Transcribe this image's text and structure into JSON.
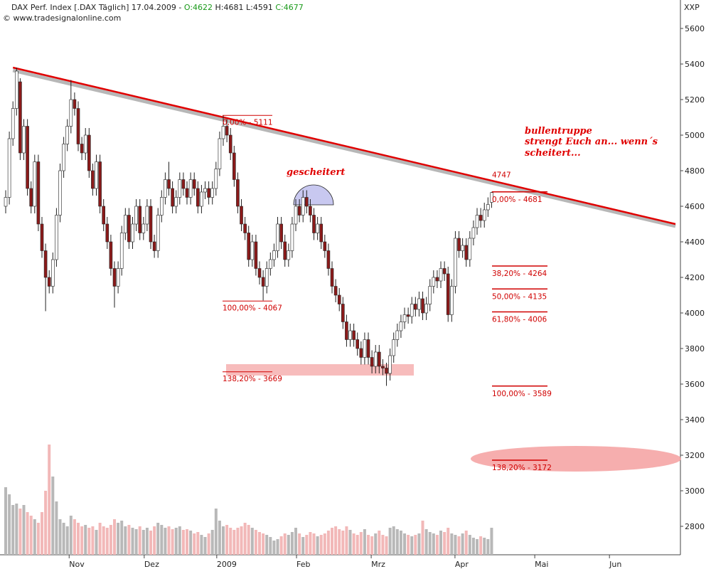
{
  "header": {
    "title": "DAX Perf. Index [.DAX Täglich] 17.04.2009 -",
    "open": "O:4622",
    "high": "H:4681",
    "low": "L:4591",
    "close": "C:4677",
    "copyright": "© www.tradesignalonline.com",
    "axis_code": "XXP"
  },
  "chart_data": {
    "type": "candlestick",
    "up_color": "#ffffff",
    "down_color": "#8b1a1a",
    "volume_up_color": "#b8b8b8",
    "volume_down_color": "#f2b8b8",
    "trend_color": "#e00000",
    "xlim": [
      -1.57,
      184.7
    ],
    "ylim": [
      2640,
      5760
    ],
    "yticks": [
      2800,
      3000,
      3200,
      3400,
      3600,
      3800,
      4000,
      4200,
      4400,
      4600,
      4800,
      5000,
      5200,
      5400,
      5600
    ],
    "xticks": [
      {
        "value": 17.5,
        "label": "Nov"
      },
      {
        "value": 38.2,
        "label": "Dez"
      },
      {
        "value": 58.2,
        "label": "2009"
      },
      {
        "value": 80.2,
        "label": "Feb"
      },
      {
        "value": 100.8,
        "label": "Mrz"
      },
      {
        "value": 123.9,
        "label": "Apr"
      },
      {
        "value": 145.9,
        "label": "Mai"
      },
      {
        "value": 166.5,
        "label": "Jun"
      }
    ],
    "candles": [
      [
        4600,
        4690,
        4560,
        4650
      ],
      [
        4650,
        5020,
        4610,
        4980
      ],
      [
        4980,
        5190,
        4940,
        5150
      ],
      [
        5150,
        5380,
        5110,
        5360
      ],
      [
        5300,
        5320,
        4860,
        4900
      ],
      [
        4900,
        5090,
        4860,
        5050
      ],
      [
        5050,
        5090,
        4660,
        4700
      ],
      [
        4700,
        4740,
        4560,
        4600
      ],
      [
        4600,
        4890,
        4560,
        4850
      ],
      [
        4850,
        4890,
        4460,
        4500
      ],
      [
        4500,
        4540,
        4310,
        4350
      ],
      [
        4350,
        4390,
        4010,
        4200
      ],
      [
        4200,
        4240,
        4110,
        4150
      ],
      [
        4150,
        4340,
        4110,
        4300
      ],
      [
        4300,
        4590,
        4260,
        4550
      ],
      [
        4550,
        4840,
        4510,
        4800
      ],
      [
        4800,
        4990,
        4760,
        4950
      ],
      [
        4950,
        5090,
        4910,
        5050
      ],
      [
        5050,
        5310,
        5010,
        5200
      ],
      [
        5200,
        5240,
        5110,
        5150
      ],
      [
        5150,
        5190,
        4910,
        4950
      ],
      [
        4950,
        4990,
        4860,
        4900
      ],
      [
        4900,
        5040,
        4860,
        5000
      ],
      [
        5000,
        5040,
        4760,
        4800
      ],
      [
        4800,
        4840,
        4660,
        4700
      ],
      [
        4700,
        4890,
        4660,
        4850
      ],
      [
        4850,
        4890,
        4560,
        4600
      ],
      [
        4600,
        4640,
        4460,
        4500
      ],
      [
        4500,
        4540,
        4360,
        4400
      ],
      [
        4400,
        4440,
        4210,
        4250
      ],
      [
        4250,
        4290,
        4030,
        4150
      ],
      [
        4150,
        4290,
        4110,
        4250
      ],
      [
        4250,
        4490,
        4210,
        4450
      ],
      [
        4450,
        4590,
        4410,
        4550
      ],
      [
        4550,
        4590,
        4360,
        4400
      ],
      [
        4400,
        4540,
        4360,
        4500
      ],
      [
        4500,
        4640,
        4460,
        4600
      ],
      [
        4600,
        4640,
        4410,
        4450
      ],
      [
        4450,
        4540,
        4410,
        4500
      ],
      [
        4500,
        4640,
        4460,
        4600
      ],
      [
        4600,
        4640,
        4360,
        4400
      ],
      [
        4400,
        4440,
        4310,
        4350
      ],
      [
        4350,
        4590,
        4310,
        4550
      ],
      [
        4550,
        4690,
        4510,
        4650
      ],
      [
        4650,
        4790,
        4610,
        4750
      ],
      [
        4750,
        4850,
        4660,
        4700
      ],
      [
        4700,
        4740,
        4560,
        4600
      ],
      [
        4600,
        4690,
        4560,
        4650
      ],
      [
        4650,
        4790,
        4610,
        4750
      ],
      [
        4750,
        4790,
        4660,
        4700
      ],
      [
        4700,
        4740,
        4610,
        4650
      ],
      [
        4650,
        4790,
        4610,
        4750
      ],
      [
        4750,
        4790,
        4660,
        4700
      ],
      [
        4700,
        4740,
        4560,
        4600
      ],
      [
        4600,
        4720,
        4560,
        4680
      ],
      [
        4680,
        4740,
        4640,
        4700
      ],
      [
        4700,
        4740,
        4610,
        4650
      ],
      [
        4650,
        4740,
        4610,
        4700
      ],
      [
        4700,
        4850,
        4660,
        4810
      ],
      [
        4810,
        5020,
        4770,
        4980
      ],
      [
        4980,
        5111,
        4940,
        5050
      ],
      [
        5050,
        5090,
        4960,
        5000
      ],
      [
        5000,
        5040,
        4860,
        4900
      ],
      [
        4900,
        4940,
        4710,
        4750
      ],
      [
        4750,
        4790,
        4560,
        4600
      ],
      [
        4600,
        4640,
        4460,
        4500
      ],
      [
        4500,
        4540,
        4410,
        4450
      ],
      [
        4450,
        4490,
        4260,
        4300
      ],
      [
        4300,
        4440,
        4260,
        4400
      ],
      [
        4400,
        4440,
        4210,
        4250
      ],
      [
        4250,
        4290,
        4160,
        4200
      ],
      [
        4200,
        4240,
        4070,
        4150
      ],
      [
        4150,
        4290,
        4110,
        4250
      ],
      [
        4250,
        4340,
        4210,
        4300
      ],
      [
        4300,
        4390,
        4260,
        4350
      ],
      [
        4350,
        4540,
        4310,
        4500
      ],
      [
        4500,
        4540,
        4360,
        4400
      ],
      [
        4400,
        4440,
        4260,
        4300
      ],
      [
        4300,
        4390,
        4260,
        4350
      ],
      [
        4350,
        4540,
        4310,
        4500
      ],
      [
        4500,
        4640,
        4460,
        4600
      ],
      [
        4600,
        4640,
        4510,
        4550
      ],
      [
        4550,
        4690,
        4510,
        4650
      ],
      [
        4650,
        4690,
        4560,
        4600
      ],
      [
        4600,
        4640,
        4510,
        4550
      ],
      [
        4550,
        4590,
        4410,
        4450
      ],
      [
        4450,
        4540,
        4410,
        4500
      ],
      [
        4500,
        4540,
        4360,
        4400
      ],
      [
        4400,
        4440,
        4310,
        4350
      ],
      [
        4350,
        4390,
        4210,
        4250
      ],
      [
        4250,
        4290,
        4110,
        4150
      ],
      [
        4150,
        4190,
        4060,
        4100
      ],
      [
        4100,
        4140,
        4010,
        4050
      ],
      [
        4050,
        4090,
        3910,
        3950
      ],
      [
        3950,
        3990,
        3810,
        3850
      ],
      [
        3850,
        3940,
        3810,
        3900
      ],
      [
        3900,
        3940,
        3810,
        3850
      ],
      [
        3850,
        3890,
        3760,
        3800
      ],
      [
        3800,
        3840,
        3710,
        3750
      ],
      [
        3750,
        3890,
        3710,
        3850
      ],
      [
        3850,
        3890,
        3710,
        3750
      ],
      [
        3750,
        3790,
        3660,
        3700
      ],
      [
        3700,
        3820,
        3660,
        3780
      ],
      [
        3780,
        3820,
        3660,
        3700
      ],
      [
        3700,
        3740,
        3650,
        3690
      ],
      [
        3690,
        3720,
        3590,
        3660
      ],
      [
        3660,
        3800,
        3620,
        3760
      ],
      [
        3760,
        3890,
        3720,
        3850
      ],
      [
        3850,
        3940,
        3810,
        3900
      ],
      [
        3900,
        3990,
        3860,
        3950
      ],
      [
        3950,
        4030,
        3910,
        3990
      ],
      [
        3990,
        4030,
        3940,
        3980
      ],
      [
        3980,
        4090,
        3940,
        4050
      ],
      [
        4050,
        4090,
        3980,
        4020
      ],
      [
        4020,
        4120,
        3980,
        4080
      ],
      [
        4080,
        4120,
        3960,
        4000
      ],
      [
        4000,
        4090,
        3960,
        4050
      ],
      [
        4050,
        4190,
        4010,
        4150
      ],
      [
        4150,
        4240,
        4110,
        4200
      ],
      [
        4200,
        4240,
        4140,
        4180
      ],
      [
        4180,
        4290,
        4140,
        4250
      ],
      [
        4250,
        4290,
        4180,
        4220
      ],
      [
        4220,
        4260,
        3950,
        3990
      ],
      [
        3990,
        4190,
        3950,
        4150
      ],
      [
        4150,
        4460,
        4110,
        4420
      ],
      [
        4420,
        4460,
        4310,
        4350
      ],
      [
        4350,
        4420,
        4310,
        4380
      ],
      [
        4380,
        4420,
        4260,
        4300
      ],
      [
        4300,
        4460,
        4260,
        4420
      ],
      [
        4420,
        4520,
        4380,
        4480
      ],
      [
        4480,
        4590,
        4440,
        4550
      ],
      [
        4550,
        4590,
        4480,
        4520
      ],
      [
        4520,
        4620,
        4480,
        4580
      ],
      [
        4580,
        4650,
        4540,
        4610
      ],
      [
        4622,
        4681,
        4591,
        4677
      ]
    ],
    "volume_lim": [
      0,
      170
    ],
    "volume": [
      95,
      85,
      70,
      72,
      65,
      70,
      60,
      55,
      50,
      45,
      60,
      90,
      155,
      110,
      75,
      50,
      45,
      40,
      55,
      50,
      45,
      40,
      42,
      38,
      40,
      35,
      45,
      40,
      38,
      42,
      50,
      45,
      48,
      40,
      42,
      38,
      36,
      40,
      35,
      38,
      34,
      40,
      45,
      42,
      38,
      40,
      36,
      38,
      40,
      35,
      36,
      34,
      30,
      32,
      28,
      25,
      30,
      35,
      65,
      48,
      40,
      42,
      38,
      35,
      38,
      40,
      45,
      42,
      38,
      35,
      32,
      30,
      28,
      25,
      20,
      22,
      26,
      30,
      28,
      32,
      38,
      30,
      25,
      28,
      32,
      30,
      26,
      28,
      30,
      34,
      38,
      40,
      36,
      34,
      40,
      35,
      30,
      28,
      32,
      36,
      28,
      26,
      30,
      34,
      28,
      26,
      38,
      40,
      36,
      34,
      30,
      28,
      26,
      28,
      30,
      48,
      36,
      32,
      30,
      28,
      34,
      32,
      38,
      30,
      28,
      26,
      30,
      34,
      28,
      24,
      22,
      26,
      24,
      22,
      38
    ],
    "trendline": [
      [
        2,
        5380
      ],
      [
        184.7,
        4500
      ]
    ],
    "fib_left": [
      {
        "value": 5111,
        "label": "0,00% - 5111"
      },
      {
        "value": 4067,
        "label": "100,00% - 4067"
      },
      {
        "value": 3669,
        "label": "138,20% - 3669"
      }
    ],
    "fib_right": [
      {
        "value": 4681,
        "label": "0,00% - 4681"
      },
      {
        "value": 4264,
        "label": "38,20% - 4264"
      },
      {
        "value": 4135,
        "label": "50,00% - 4135"
      },
      {
        "value": 4006,
        "label": "61,80% - 4006"
      },
      {
        "value": 3589,
        "label": "100,00% - 3589"
      },
      {
        "value": 3172,
        "label": "138,20% - 3172"
      }
    ],
    "trend_value": {
      "value": 4747,
      "label": "4747"
    },
    "annotations": [
      "gescheitert",
      "bullentruppe",
      "strengt Euch an... wenn´s",
      "scheitert..."
    ]
  }
}
